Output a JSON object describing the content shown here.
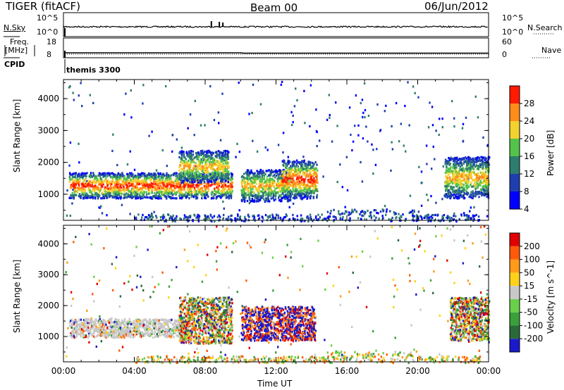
{
  "header": {
    "station": "TIGER (fitACF)",
    "beam": "Beam 00",
    "date": "06/Jun/2012"
  },
  "summary_panels": {
    "nsky_label": "N.Sky",
    "nsky_ticks": [
      "10^5",
      "10^0"
    ],
    "nsearch_label": "N.Search",
    "nsearch_ticks": [
      "10^5",
      "10^0"
    ],
    "freq_label_1": "Freq.",
    "freq_label_2": "[MHz]",
    "freq_ticks": [
      "18",
      "8"
    ],
    "nave_label": "Nave",
    "nave_ticks": [
      "60",
      "0"
    ],
    "cpid_label": "CPID",
    "cpid_value": "themis 3300"
  },
  "chart_data": [
    {
      "type": "heatmap",
      "name": "power",
      "xlabel": "",
      "ylabel": "Slant Range [km]",
      "x_range_hours": [
        0,
        24
      ],
      "ylim": [
        180,
        4600
      ],
      "yticks": [
        "4000",
        "3000",
        "2000",
        "1000"
      ],
      "colorbar": {
        "label": "Power [dB]",
        "ticks": [
          "28",
          "24",
          "20",
          "16",
          "12",
          "8",
          "4"
        ],
        "colors": [
          "#0000ff",
          "#1f3fb0",
          "#2e7d6e",
          "#54c34b",
          "#f2d22e",
          "#ff8c1a",
          "#ff1a00"
        ]
      },
      "regions": [
        {
          "t": [
            0.3,
            9.5
          ],
          "r": [
            900,
            1700
          ],
          "level": "high"
        },
        {
          "t": [
            6.5,
            9.3
          ],
          "r": [
            1400,
            2400
          ],
          "level": "mid"
        },
        {
          "t": [
            10.0,
            12.8
          ],
          "r": [
            800,
            1800
          ],
          "level": "mid"
        },
        {
          "t": [
            12.3,
            14.3
          ],
          "r": [
            900,
            2100
          ],
          "level": "high"
        },
        {
          "t": [
            21.5,
            24.0
          ],
          "r": [
            900,
            2200
          ],
          "level": "mid"
        }
      ]
    },
    {
      "type": "heatmap",
      "name": "velocity",
      "xlabel": "Time UT",
      "ylabel": "Slant Range [km]",
      "x_range_hours": [
        0,
        24
      ],
      "xticks": [
        "00:00",
        "04:00",
        "08:00",
        "12:00",
        "16:00",
        "20:00",
        "00:00"
      ],
      "ylim": [
        180,
        4600
      ],
      "yticks": [
        "4000",
        "3000",
        "2000",
        "1000"
      ],
      "colorbar": {
        "label": "Velocity [m s^-1]",
        "ticks": [
          "200",
          "100",
          "50",
          "15",
          "-15",
          "-50",
          "-100",
          "-200"
        ],
        "colors": [
          "#1a1acc",
          "#2a6a3a",
          "#3aa03a",
          "#6ad04a",
          "#c8c8c8",
          "#ffd21a",
          "#ff9a1a",
          "#ff5a0a",
          "#e00000"
        ]
      },
      "regions": [
        {
          "t": [
            0.3,
            7.0
          ],
          "r": [
            1000,
            1600
          ],
          "v": "ground"
        },
        {
          "t": [
            6.5,
            9.5
          ],
          "r": [
            800,
            2300
          ],
          "v": "mixed"
        },
        {
          "t": [
            10.0,
            14.2
          ],
          "r": [
            900,
            2000
          ],
          "v": "positive-negative"
        },
        {
          "t": [
            21.8,
            24.0
          ],
          "r": [
            900,
            2300
          ],
          "v": "mixed"
        }
      ]
    }
  ],
  "colors": {
    "frame": "#000000",
    "noise_dot": "#000000"
  }
}
